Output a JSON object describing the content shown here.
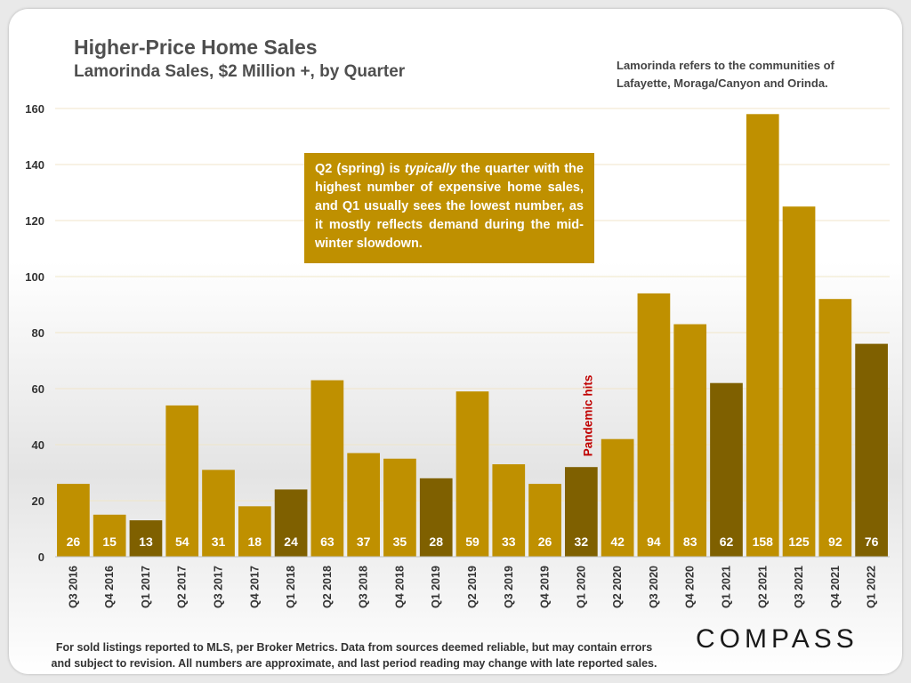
{
  "chart_data": {
    "type": "bar",
    "title": "Higher-Price Home Sales",
    "subtitle": "Lamorinda Sales, $2 Million +, by Quarter",
    "xlabel": "",
    "ylabel": "",
    "ylim": [
      0,
      160
    ],
    "yticks": [
      0,
      20,
      40,
      60,
      80,
      100,
      120,
      140,
      160
    ],
    "categories": [
      "Q3 2016",
      "Q4 2016",
      "Q1 2017",
      "Q2 2017",
      "Q3 2017",
      "Q4 2017",
      "Q1 2018",
      "Q2 2018",
      "Q3 2018",
      "Q4 2018",
      "Q1 2019",
      "Q2 2019",
      "Q3 2019",
      "Q4 2019",
      "Q1 2020",
      "Q2 2020",
      "Q3 2020",
      "Q4 2020",
      "Q1 2021",
      "Q2 2021",
      "Q3 2021",
      "Q4 2021",
      "Q1 2022"
    ],
    "values": [
      26,
      15,
      13,
      54,
      31,
      18,
      24,
      63,
      37,
      35,
      28,
      59,
      33,
      26,
      32,
      42,
      94,
      83,
      62,
      158,
      125,
      92,
      76
    ],
    "highlight_q1": true,
    "colors": {
      "default": "#bf9000",
      "q1": "#7f6000",
      "label": "#ffffff",
      "axis": "#333333",
      "annotation": "#c00000"
    },
    "annotation": {
      "text": "Pandemic hits",
      "category": "Q1 2020"
    }
  },
  "note": {
    "line1": "Lamorinda refers to the communities of",
    "line2": "Lafayette, Moraga/Canyon and Orinda."
  },
  "callout": {
    "part1": "Q2 (spring) is ",
    "em": "typically",
    "part2": " the quarter with the highest number of expensive home sales, and Q1 usually sees the lowest number, as it mostly reflects demand during the mid-winter slowdown."
  },
  "footer": {
    "line1": "For sold listings reported to MLS, per Broker Metrics. Data from sources deemed reliable, but may contain errors",
    "line2": "and subject to revision. All numbers are approximate, and last period reading may change with late reported sales."
  },
  "logo": "COMPASS"
}
